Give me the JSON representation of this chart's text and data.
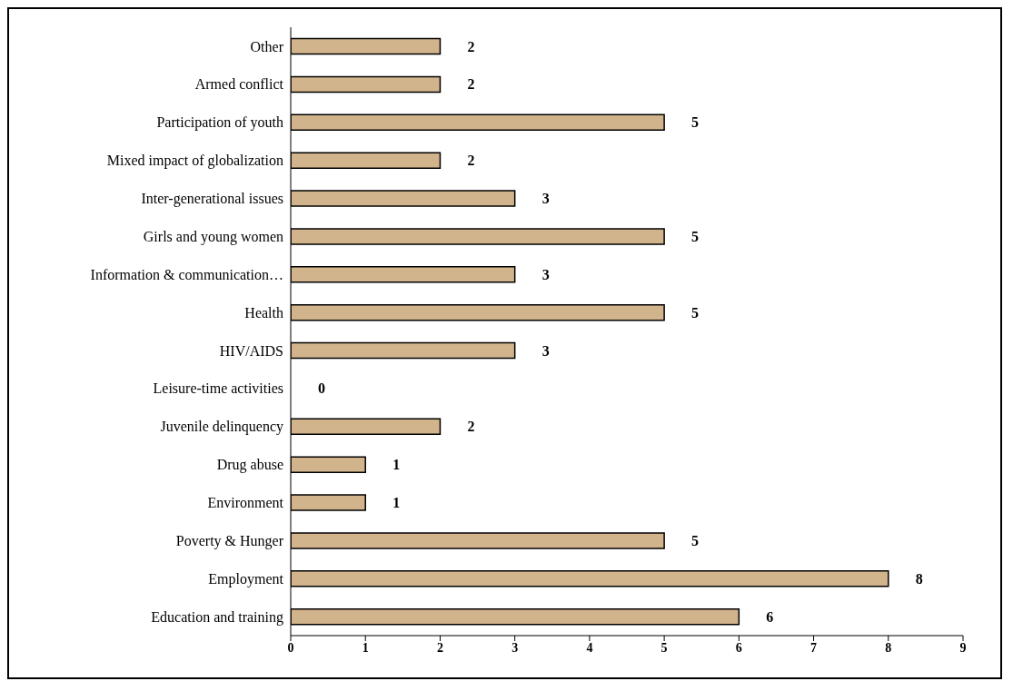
{
  "chart_data": {
    "type": "bar",
    "orientation": "horizontal",
    "categories": [
      "Other",
      "Armed conflict",
      "Participation of youth",
      "Mixed impact of globalization",
      "Inter-generational issues",
      "Girls and young women",
      "Information & communication…",
      "Health",
      "HIV/AIDS",
      "Leisure-time activities",
      "Juvenile delinquency",
      "Drug abuse",
      "Environment",
      "Poverty & Hunger",
      "Employment",
      "Education and training"
    ],
    "values": [
      2,
      2,
      5,
      2,
      3,
      5,
      3,
      5,
      3,
      0,
      2,
      1,
      1,
      5,
      8,
      6
    ],
    "color": "#d2b48c",
    "xlim": [
      0,
      9
    ],
    "xticks": [
      0,
      1,
      2,
      3,
      4,
      5,
      6,
      7,
      8,
      9
    ],
    "data_labels": true
  }
}
